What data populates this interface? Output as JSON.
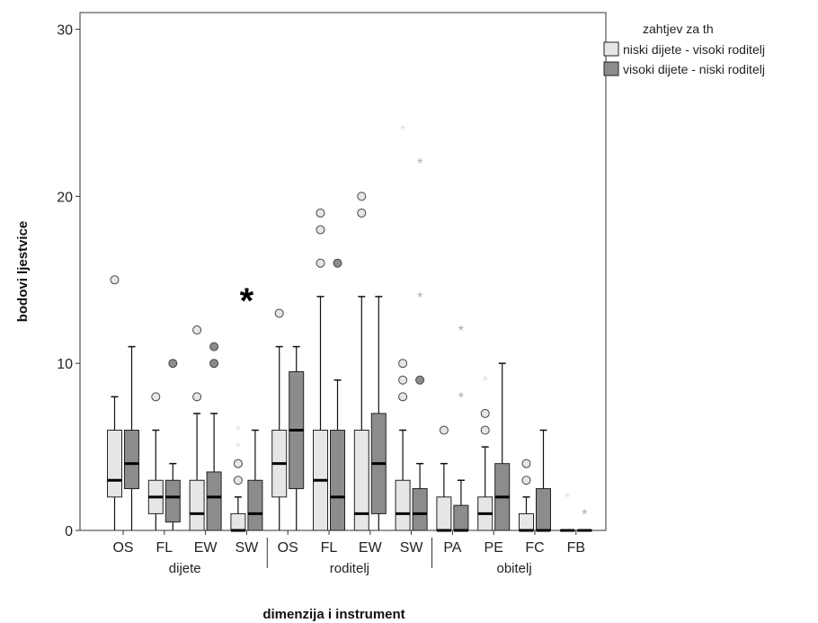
{
  "chart_data": {
    "type": "boxplot",
    "xlabel": "dimenzija i instrument",
    "ylabel": "bodovi ljestvice",
    "ylim": [
      0,
      31
    ],
    "yticks": [
      0,
      10,
      20,
      30
    ],
    "legend": {
      "title": "zahtjev za th",
      "placement": "right-top"
    },
    "series": [
      {
        "name": "niski dijete - visoki roditelj",
        "color": "#e6e6e6"
      },
      {
        "name": "visoki dijete - niski roditelj",
        "color": "#8c8c8c"
      }
    ],
    "groups": [
      {
        "label": "dijete",
        "categories": [
          "OS",
          "FL",
          "EW",
          "SW"
        ]
      },
      {
        "label": "roditelj",
        "categories": [
          "OS",
          "FL",
          "EW",
          "SW"
        ]
      },
      {
        "label": "obitelj",
        "categories": [
          "PA",
          "PE",
          "FC",
          "FB"
        ]
      }
    ],
    "categories": [
      "OS",
      "FL",
      "EW",
      "SW",
      "OS",
      "FL",
      "EW",
      "SW",
      "PA",
      "PE",
      "FC",
      "FB"
    ],
    "boxes": [
      [
        {
          "min": 0,
          "q1": 2,
          "median": 3,
          "q3": 6,
          "max": 8,
          "outliers": [
            15
          ],
          "extremes": []
        },
        {
          "min": 0,
          "q1": 2.5,
          "median": 4,
          "q3": 6,
          "max": 11,
          "outliers": [],
          "extremes": []
        }
      ],
      [
        {
          "min": 0,
          "q1": 1,
          "median": 2,
          "q3": 3,
          "max": 6,
          "outliers": [
            8
          ],
          "extremes": []
        },
        {
          "min": 0,
          "q1": 0.5,
          "median": 2,
          "q3": 3,
          "max": 4,
          "outliers": [
            10
          ],
          "extremes": []
        }
      ],
      [
        {
          "min": 0,
          "q1": 0,
          "median": 1,
          "q3": 3,
          "max": 7,
          "outliers": [
            8,
            12
          ],
          "extremes": []
        },
        {
          "min": 0,
          "q1": 0,
          "median": 2,
          "q3": 3.5,
          "max": 7,
          "outliers": [
            10,
            11
          ],
          "extremes": []
        }
      ],
      [
        {
          "min": 0,
          "q1": 0,
          "median": 0,
          "q3": 1,
          "max": 2,
          "outliers": [
            3,
            4
          ],
          "extremes": [
            5,
            6
          ]
        },
        {
          "min": 0,
          "q1": 0,
          "median": 1,
          "q3": 3,
          "max": 6,
          "outliers": [],
          "extremes": []
        }
      ],
      [
        {
          "min": 0,
          "q1": 2,
          "median": 4,
          "q3": 6,
          "max": 11,
          "outliers": [
            13
          ],
          "extremes": []
        },
        {
          "min": 0,
          "q1": 2.5,
          "median": 6,
          "q3": 9.5,
          "max": 11,
          "outliers": [],
          "extremes": []
        }
      ],
      [
        {
          "min": 0,
          "q1": 0,
          "median": 3,
          "q3": 6,
          "max": 14,
          "outliers": [
            16,
            18,
            19
          ],
          "extremes": []
        },
        {
          "min": 0,
          "q1": 0,
          "median": 2,
          "q3": 6,
          "max": 9,
          "outliers": [
            16
          ],
          "extremes": []
        }
      ],
      [
        {
          "min": 0,
          "q1": 0,
          "median": 1,
          "q3": 6,
          "max": 14,
          "outliers": [
            19,
            20
          ],
          "extremes": []
        },
        {
          "min": 0,
          "q1": 1,
          "median": 4,
          "q3": 7,
          "max": 14,
          "outliers": [],
          "extremes": []
        }
      ],
      [
        {
          "min": 0,
          "q1": 0,
          "median": 1,
          "q3": 3,
          "max": 6,
          "outliers": [
            8,
            9,
            10
          ],
          "extremes": [
            24
          ]
        },
        {
          "min": 0,
          "q1": 0,
          "median": 1,
          "q3": 2.5,
          "max": 4,
          "outliers": [
            9
          ],
          "extremes": [
            14,
            22
          ]
        }
      ],
      [
        {
          "min": 0,
          "q1": 0,
          "median": 0,
          "q3": 2,
          "max": 4,
          "outliers": [
            6
          ],
          "extremes": []
        },
        {
          "min": 0,
          "q1": 0,
          "median": 0,
          "q3": 1.5,
          "max": 3,
          "outliers": [],
          "extremes": [
            8,
            12
          ]
        }
      ],
      [
        {
          "min": 0,
          "q1": 0,
          "median": 1,
          "q3": 2,
          "max": 5,
          "outliers": [
            6,
            7
          ],
          "extremes": [
            9
          ]
        },
        {
          "min": 0,
          "q1": 0,
          "median": 2,
          "q3": 4,
          "max": 10,
          "outliers": [],
          "extremes": []
        }
      ],
      [
        {
          "min": 0,
          "q1": 0,
          "median": 0,
          "q3": 1,
          "max": 2,
          "outliers": [
            3,
            4
          ],
          "extremes": []
        },
        {
          "min": 0,
          "q1": 0,
          "median": 0,
          "q3": 2.5,
          "max": 6,
          "outliers": [],
          "extremes": []
        }
      ],
      [
        {
          "min": 0,
          "q1": 0,
          "median": 0,
          "q3": 0,
          "max": 0,
          "outliers": [],
          "extremes": [
            2
          ]
        },
        {
          "min": 0,
          "q1": 0,
          "median": 0,
          "q3": 0,
          "max": 0,
          "outliers": [],
          "extremes": [
            1
          ]
        }
      ]
    ],
    "annotations": [
      {
        "text": "*",
        "x_category_index": 3,
        "y": 14
      }
    ],
    "grid": false
  }
}
